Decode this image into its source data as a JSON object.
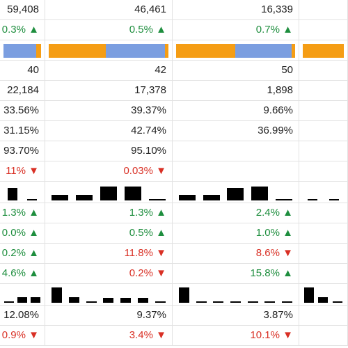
{
  "table": {
    "rows": [
      {
        "cells": [
          {
            "text": "59,408"
          },
          {
            "text": "46,461"
          },
          {
            "text": "16,339"
          },
          null
        ]
      },
      {
        "cells": [
          {
            "text": "0.3% ▲",
            "color": "#1e8e3e"
          },
          {
            "text": "0.5% ▲",
            "color": "#1e8e3e"
          },
          {
            "text": "0.7% ▲",
            "color": "#1e8e3e"
          },
          null
        ]
      },
      {
        "cells": [
          {
            "segments": [
              52,
              8
            ],
            "colors": [
              "#7b9ee0",
              "#f59d14"
            ]
          },
          {
            "segments": [
              82,
              86,
              5
            ],
            "colors": [
              "#f59d14",
              "#7b9ee0",
              "#f59d14"
            ]
          },
          {
            "segments": [
              85,
              82,
              5
            ],
            "colors": [
              "#f59d14",
              "#7b9ee0",
              "#f59d14"
            ]
          },
          {
            "segments": [
              64
            ],
            "colors": [
              "#f59d14"
            ]
          }
        ]
      },
      {
        "cells": [
          {
            "text": "40"
          },
          {
            "text": "42"
          },
          {
            "text": "50"
          },
          null
        ]
      },
      {
        "cells": [
          {
            "text": "22,184"
          },
          {
            "text": "17,378"
          },
          {
            "text": "1,898"
          },
          null
        ]
      },
      {
        "cells": [
          {
            "text": "33.56%"
          },
          {
            "text": "39.37%"
          },
          {
            "text": "9.66%"
          },
          null
        ]
      },
      {
        "cells": [
          {
            "text": "31.15%"
          },
          {
            "text": "42.74%"
          },
          {
            "text": "36.99%"
          },
          null
        ]
      },
      {
        "cells": [
          {
            "text": "93.70%"
          },
          {
            "text": "95.10%"
          },
          null,
          null
        ]
      },
      {
        "cells": [
          {
            "text": "11% ▼",
            "color": "#d93025"
          },
          {
            "text": "0.03% ▼",
            "color": "#d93025"
          },
          null,
          null
        ]
      },
      {
        "cells": [
          {
            "bars": [
              18,
              2
            ]
          },
          {
            "bars": [
              8,
              8,
              20,
              20,
              2
            ]
          },
          {
            "bars": [
              8,
              8,
              18,
              20,
              2
            ]
          },
          {
            "bars": [
              2,
              2
            ]
          }
        ]
      },
      {
        "cells": [
          {
            "text": "1.3% ▲",
            "color": "#1e8e3e"
          },
          {
            "text": "1.3% ▲",
            "color": "#1e8e3e"
          },
          {
            "text": "2.4% ▲",
            "color": "#1e8e3e"
          },
          null
        ]
      },
      {
        "cells": [
          {
            "text": "0.0% ▲",
            "color": "#1e8e3e"
          },
          {
            "text": "0.5% ▲",
            "color": "#1e8e3e"
          },
          {
            "text": "1.0% ▲",
            "color": "#1e8e3e"
          },
          null
        ]
      },
      {
        "cells": [
          {
            "text": "0.2% ▲",
            "color": "#1e8e3e"
          },
          {
            "text": "11.8% ▼",
            "color": "#d93025"
          },
          {
            "text": "8.6% ▼",
            "color": "#d93025"
          },
          null
        ]
      },
      {
        "cells": [
          {
            "text": "4.6% ▲",
            "color": "#1e8e3e"
          },
          {
            "text": "0.2% ▼",
            "color": "#d93025"
          },
          {
            "text": "15.8% ▲",
            "color": "#1e8e3e"
          },
          null
        ]
      },
      {
        "cells": [
          {
            "bars": [
              2,
              8,
              8
            ]
          },
          {
            "bars": [
              22,
              8,
              2,
              7,
              7,
              7,
              2
            ]
          },
          {
            "bars": [
              22,
              2,
              2,
              2,
              2,
              2,
              2
            ]
          },
          {
            "bars": [
              22,
              8,
              2
            ]
          }
        ]
      },
      {
        "cells": [
          {
            "text": "12.08%"
          },
          {
            "text": "9.37%"
          },
          {
            "text": "3.87%"
          },
          null
        ]
      },
      {
        "cells": [
          {
            "text": "0.9% ▼",
            "color": "#d93025"
          },
          {
            "text": "3.4% ▼",
            "color": "#d93025"
          },
          {
            "text": "10.1% ▼",
            "color": "#d93025"
          },
          null
        ]
      }
    ]
  }
}
